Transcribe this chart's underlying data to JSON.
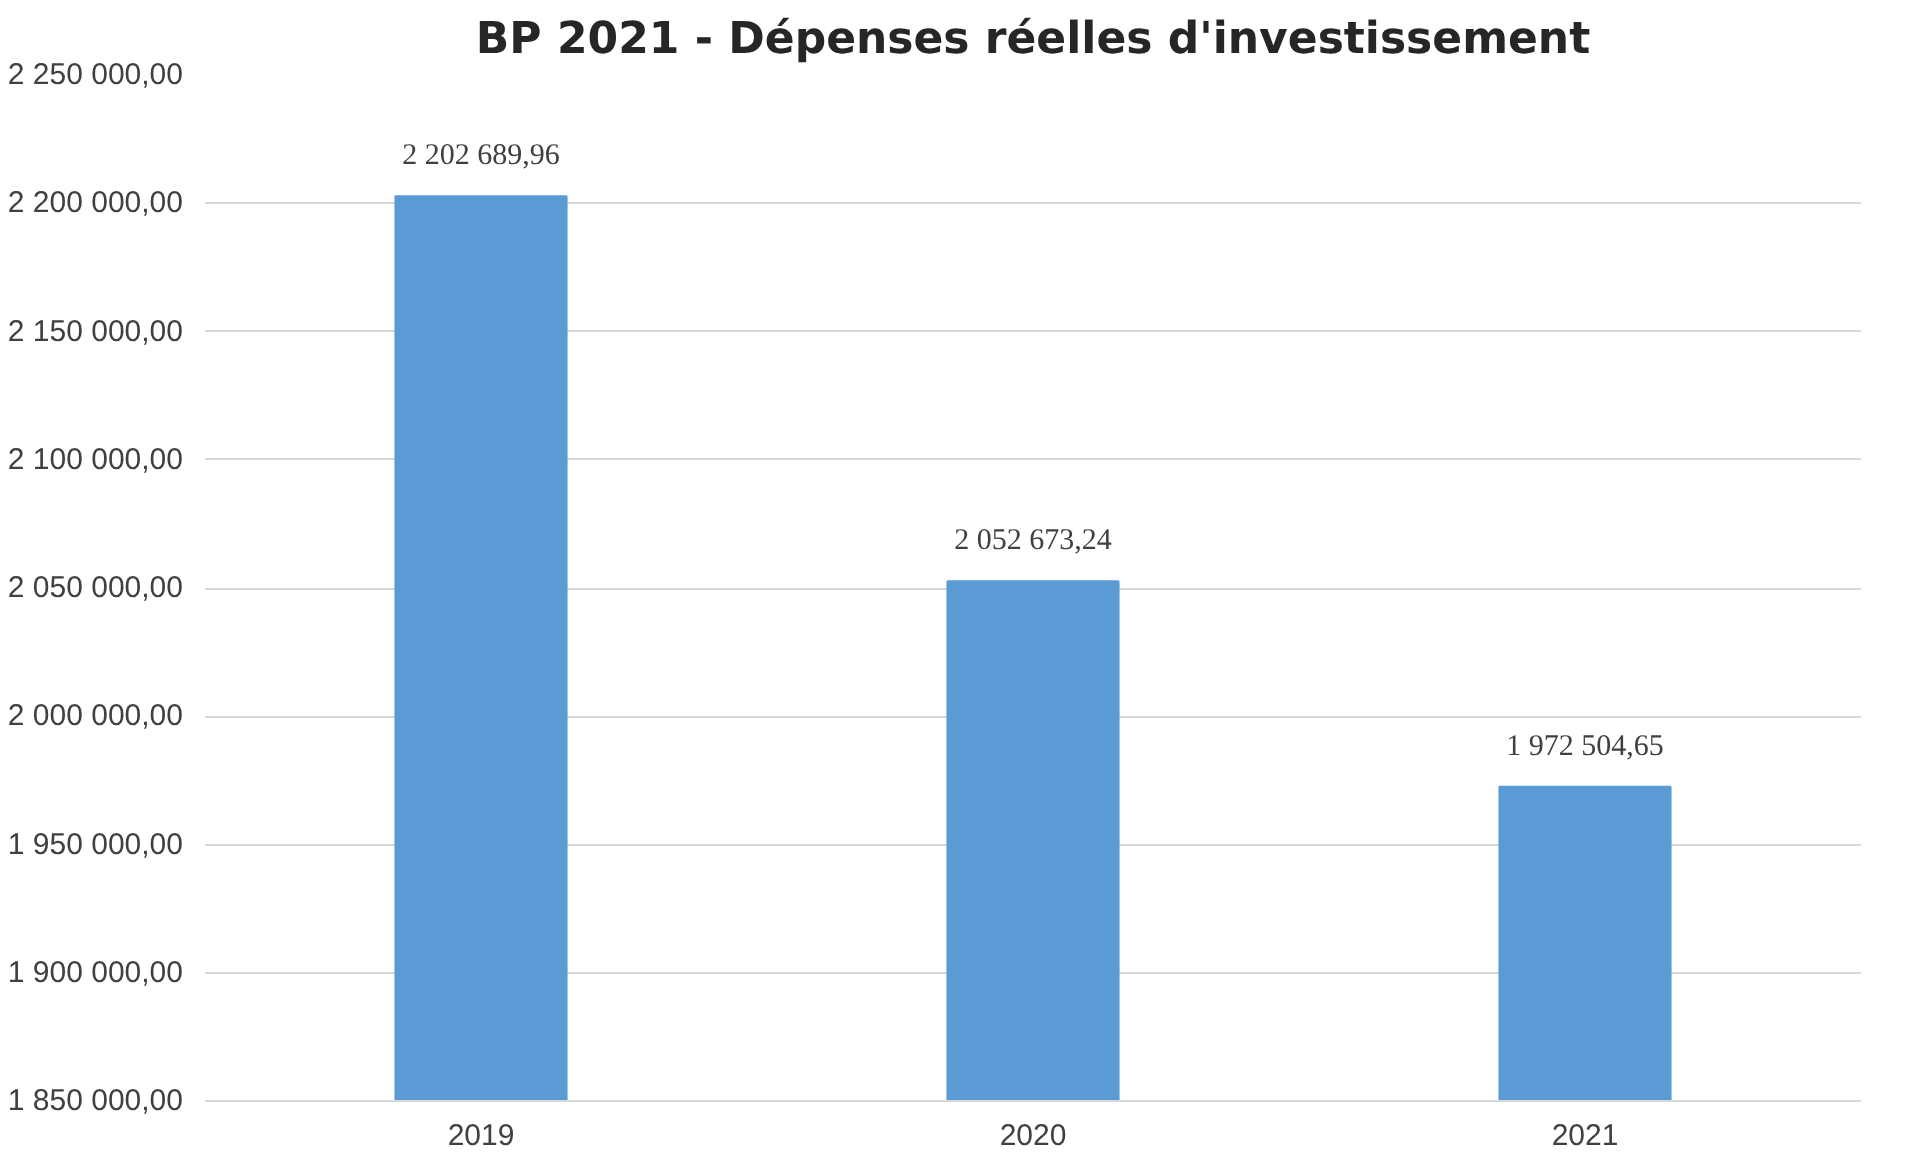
{
  "chart_data": {
    "type": "bar",
    "title": "BP 2021 - Dépenses réelles d'investissement",
    "categories": [
      "2019",
      "2020",
      "2021"
    ],
    "values": [
      2202689.96,
      2052673.24,
      1972504.65
    ],
    "value_labels": [
      "2 202 689,96",
      "2 052 673,24",
      "1 972 504,65"
    ],
    "color": "#5b9bd5",
    "ylim": [
      1850000,
      2250000
    ],
    "yticks": [
      {
        "value": 1850000,
        "label": "1 850 000,00"
      },
      {
        "value": 1900000,
        "label": "1 900 000,00"
      },
      {
        "value": 1950000,
        "label": "1 950 000,00"
      },
      {
        "value": 2000000,
        "label": "2 000 000,00"
      },
      {
        "value": 2050000,
        "label": "2 050 000,00"
      },
      {
        "value": 2100000,
        "label": "2 100 000,00"
      },
      {
        "value": 2150000,
        "label": "2 150 000,00"
      },
      {
        "value": 2200000,
        "label": "2 200 000,00"
      },
      {
        "value": 2250000,
        "label": "2 250 000,00"
      }
    ],
    "grid": "y"
  }
}
